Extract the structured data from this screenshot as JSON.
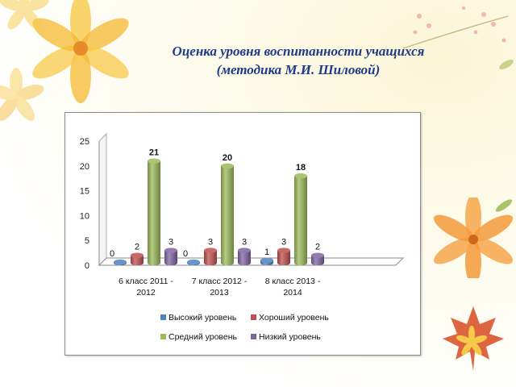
{
  "title": {
    "line1": "Оценка уровня воспитанности  учащихся",
    "line2": "(методика М.И. Шиловой)"
  },
  "colors": {
    "series": [
      "#4f81bd",
      "#c0504d",
      "#9bbb59",
      "#8064a2"
    ],
    "title": "#1f3a8a"
  },
  "chart_data": {
    "type": "bar",
    "title": "",
    "categories": [
      [
        "6 класс 2011 -",
        "2012"
      ],
      [
        "7 класс 2012 -",
        "2013"
      ],
      [
        "8 класс 2013 -",
        "2014"
      ]
    ],
    "series": [
      {
        "name": "Высокий уровень",
        "values": [
          0,
          0,
          1
        ]
      },
      {
        "name": "Хороший уровень",
        "values": [
          2,
          3,
          3
        ]
      },
      {
        "name": "Средний уровень",
        "values": [
          21,
          20,
          18
        ]
      },
      {
        "name": "Низкий уровень",
        "values": [
          3,
          3,
          2
        ]
      }
    ],
    "ylim": [
      0,
      25
    ],
    "yticks": [
      "0",
      "5",
      "10",
      "15",
      "20",
      "25"
    ],
    "legend_position": "bottom",
    "style": "3d-cylinder"
  }
}
